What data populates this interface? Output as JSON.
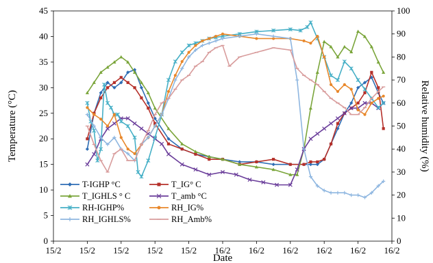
{
  "chart_data": {
    "type": "line",
    "title": "",
    "xlabel": "Date",
    "ylabel": "Temperature (°C)",
    "y2label": "Relative humidity (%)",
    "x_ticks": [
      "15/2",
      "15/2",
      "15/2",
      "15/2",
      "15/2",
      "16/2",
      "16/2",
      "16/2",
      "16/2",
      "16/2",
      "16/2"
    ],
    "xlim": [
      0,
      10
    ],
    "ylim": [
      0,
      45
    ],
    "y_ticks": [
      0,
      5,
      10,
      15,
      20,
      25,
      30,
      35,
      40,
      45
    ],
    "y2lim": [
      0,
      100
    ],
    "y2_ticks": [
      0,
      10,
      20,
      30,
      40,
      50,
      60,
      70,
      80,
      90,
      100
    ],
    "grid": false,
    "legend_position": "bottom-left inside",
    "series": [
      {
        "name": "T-IGHP °C",
        "axis": "left",
        "color": "#2E6DB4",
        "marker": "diamond",
        "x": [
          1.0,
          1.2,
          1.4,
          1.6,
          1.8,
          2.0,
          2.2,
          2.4,
          2.6,
          2.8,
          3.0,
          3.4,
          3.8,
          4.2,
          4.6,
          5.0,
          5.5,
          6.0,
          6.5,
          7.0,
          7.4,
          7.6,
          7.8,
          8.0,
          8.2,
          8.4,
          8.6,
          8.8,
          9.0,
          9.2,
          9.4,
          9.6,
          9.75
        ],
        "y": [
          18,
          25,
          29,
          31,
          30,
          31,
          33,
          33.5,
          30,
          27,
          24,
          20,
          18,
          17,
          16.5,
          16,
          15.5,
          15.5,
          15,
          15,
          15,
          15,
          15,
          16,
          19,
          22,
          25,
          27,
          30,
          31,
          32,
          29,
          27
        ]
      },
      {
        "name": "T_IG° C",
        "axis": "left",
        "color": "#B5302A",
        "marker": "square",
        "x": [
          1.0,
          1.2,
          1.4,
          1.6,
          1.8,
          2.0,
          2.2,
          2.4,
          2.6,
          2.8,
          3.0,
          3.4,
          3.8,
          4.2,
          4.6,
          5.0,
          5.5,
          6.0,
          6.5,
          7.0,
          7.4,
          7.6,
          7.8,
          8.0,
          8.2,
          8.4,
          8.6,
          8.8,
          9.0,
          9.2,
          9.4,
          9.6,
          9.75
        ],
        "y": [
          20,
          25,
          28,
          30,
          31,
          32,
          31,
          30,
          28,
          26,
          23,
          19,
          18,
          17,
          16,
          16,
          15,
          15.5,
          16,
          15,
          15,
          15.5,
          15.5,
          16,
          19,
          23,
          25,
          26,
          27,
          29,
          33,
          30,
          22
        ]
      },
      {
        "name": "T_IGHLS ° C",
        "axis": "left",
        "color": "#7AA53A",
        "marker": "triangle",
        "x": [
          1.0,
          1.2,
          1.4,
          1.6,
          1.8,
          2.0,
          2.2,
          2.4,
          2.6,
          2.8,
          3.0,
          3.4,
          3.8,
          4.2,
          4.6,
          5.0,
          5.5,
          6.0,
          6.5,
          7.0,
          7.2,
          7.4,
          7.6,
          7.8,
          8.0,
          8.2,
          8.4,
          8.6,
          8.8,
          9.0,
          9.2,
          9.4,
          9.6,
          9.75
        ],
        "y": [
          29,
          31,
          33,
          34,
          35,
          36,
          35,
          33,
          31,
          29,
          26,
          22,
          19,
          17.5,
          16.5,
          16,
          15,
          14.5,
          14,
          13,
          13,
          18,
          26,
          33,
          39,
          38,
          36,
          38,
          37,
          41,
          40,
          38,
          35,
          33
        ]
      },
      {
        "name": "T_amb °C",
        "axis": "left",
        "color": "#6A3D9A",
        "marker": "x",
        "x": [
          1.0,
          1.2,
          1.4,
          1.6,
          1.8,
          2.0,
          2.2,
          2.4,
          2.6,
          2.8,
          3.0,
          3.2,
          3.4,
          3.8,
          4.2,
          4.6,
          5.0,
          5.4,
          5.8,
          6.2,
          6.6,
          7.0,
          7.2,
          7.4,
          7.6,
          7.8,
          8.0,
          8.2,
          8.4,
          8.6,
          8.8,
          9.0,
          9.2,
          9.4,
          9.6,
          9.75
        ],
        "y": [
          15,
          17,
          20,
          22,
          23,
          24,
          24,
          23,
          22,
          21,
          20,
          19,
          17,
          15,
          14,
          13,
          13.5,
          13,
          12,
          11.5,
          11,
          11,
          14,
          18,
          20,
          21,
          22,
          23,
          24,
          25,
          26,
          26,
          27,
          27,
          26,
          27
        ]
      },
      {
        "name": "RH-IGHP%",
        "axis": "right",
        "color": "#45AFC6",
        "marker": "star",
        "x": [
          1.0,
          1.1,
          1.2,
          1.3,
          1.4,
          1.5,
          1.6,
          1.7,
          1.8,
          1.9,
          2.0,
          2.2,
          2.4,
          2.5,
          2.6,
          2.8,
          3.0,
          3.2,
          3.4,
          3.6,
          3.8,
          4.0,
          4.2,
          4.4,
          4.6,
          4.8,
          5.0,
          5.5,
          6.0,
          6.5,
          7.0,
          7.3,
          7.5,
          7.6,
          7.8,
          8.0,
          8.2,
          8.4,
          8.6,
          8.8,
          9.0,
          9.2,
          9.4,
          9.6,
          9.75
        ],
        "y": [
          60,
          52,
          48,
          35,
          40,
          68,
          60,
          58,
          55,
          55,
          52,
          50,
          45,
          30,
          28,
          35,
          45,
          55,
          70,
          78,
          82,
          85,
          86,
          87,
          88,
          88.5,
          89,
          90,
          91,
          91.5,
          92,
          91.5,
          93,
          95,
          88,
          80,
          72,
          70,
          78,
          75,
          70,
          66,
          62,
          58,
          60
        ]
      },
      {
        "name": "RH_IG%",
        "axis": "right",
        "color": "#E8872A",
        "marker": "circle",
        "x": [
          1.0,
          1.2,
          1.4,
          1.6,
          1.8,
          2.0,
          2.2,
          2.4,
          2.6,
          2.8,
          3.0,
          3.2,
          3.4,
          3.6,
          3.8,
          4.0,
          4.2,
          4.4,
          4.6,
          4.8,
          5.0,
          5.5,
          6.0,
          6.5,
          7.0,
          7.4,
          7.6,
          7.8,
          8.0,
          8.2,
          8.4,
          8.6,
          8.8,
          9.0,
          9.2,
          9.4,
          9.6,
          9.75
        ],
        "y": [
          58,
          55,
          53,
          50,
          55,
          45,
          40,
          38,
          42,
          45,
          50,
          55,
          65,
          72,
          78,
          82,
          85,
          87,
          88,
          89,
          90,
          89,
          88,
          88,
          88,
          87,
          86,
          89,
          80,
          68,
          65,
          68,
          66,
          57,
          55,
          60,
          62,
          63
        ]
      },
      {
        "name": "RH_IGHLS%",
        "axis": "right",
        "color": "#8EB6E0",
        "marker": "plus",
        "x": [
          1.0,
          1.2,
          1.4,
          1.6,
          1.8,
          2.0,
          2.2,
          2.4,
          2.6,
          2.8,
          3.0,
          3.2,
          3.4,
          3.6,
          3.8,
          4.0,
          4.2,
          4.4,
          4.6,
          4.8,
          5.0,
          5.5,
          6.0,
          6.5,
          7.0,
          7.2,
          7.4,
          7.6,
          7.8,
          8.0,
          8.2,
          8.4,
          8.6,
          8.8,
          9.0,
          9.2,
          9.4,
          9.6,
          9.75
        ],
        "y": [
          55,
          50,
          45,
          42,
          45,
          40,
          38,
          35,
          42,
          45,
          50,
          55,
          62,
          70,
          75,
          80,
          83,
          85,
          86,
          87,
          88,
          89,
          90,
          89,
          88,
          70,
          40,
          28,
          24,
          22,
          21,
          21,
          21,
          20,
          20,
          19,
          21,
          24,
          26
        ]
      },
      {
        "name": "RH_Amb%",
        "axis": "right",
        "color": "#D89C9C",
        "marker": "dash",
        "x": [
          1.0,
          1.2,
          1.4,
          1.6,
          1.8,
          2.0,
          2.2,
          2.4,
          2.6,
          2.8,
          3.0,
          3.2,
          3.4,
          3.6,
          3.8,
          4.0,
          4.2,
          4.4,
          4.6,
          4.8,
          5.0,
          5.2,
          5.5,
          6.0,
          6.5,
          7.0,
          7.2,
          7.4,
          7.6,
          7.8,
          8.0,
          8.2,
          8.4,
          8.6,
          8.8,
          9.0,
          9.2,
          9.4,
          9.6,
          9.75
        ],
        "y": [
          50,
          42,
          35,
          30,
          38,
          40,
          35,
          35,
          42,
          48,
          55,
          60,
          62,
          66,
          70,
          72,
          76,
          78,
          82,
          84,
          85,
          76,
          80,
          82,
          84,
          83,
          75,
          72,
          70,
          68,
          65,
          62,
          60,
          58,
          55,
          55,
          58,
          62,
          65,
          67
        ]
      }
    ]
  }
}
